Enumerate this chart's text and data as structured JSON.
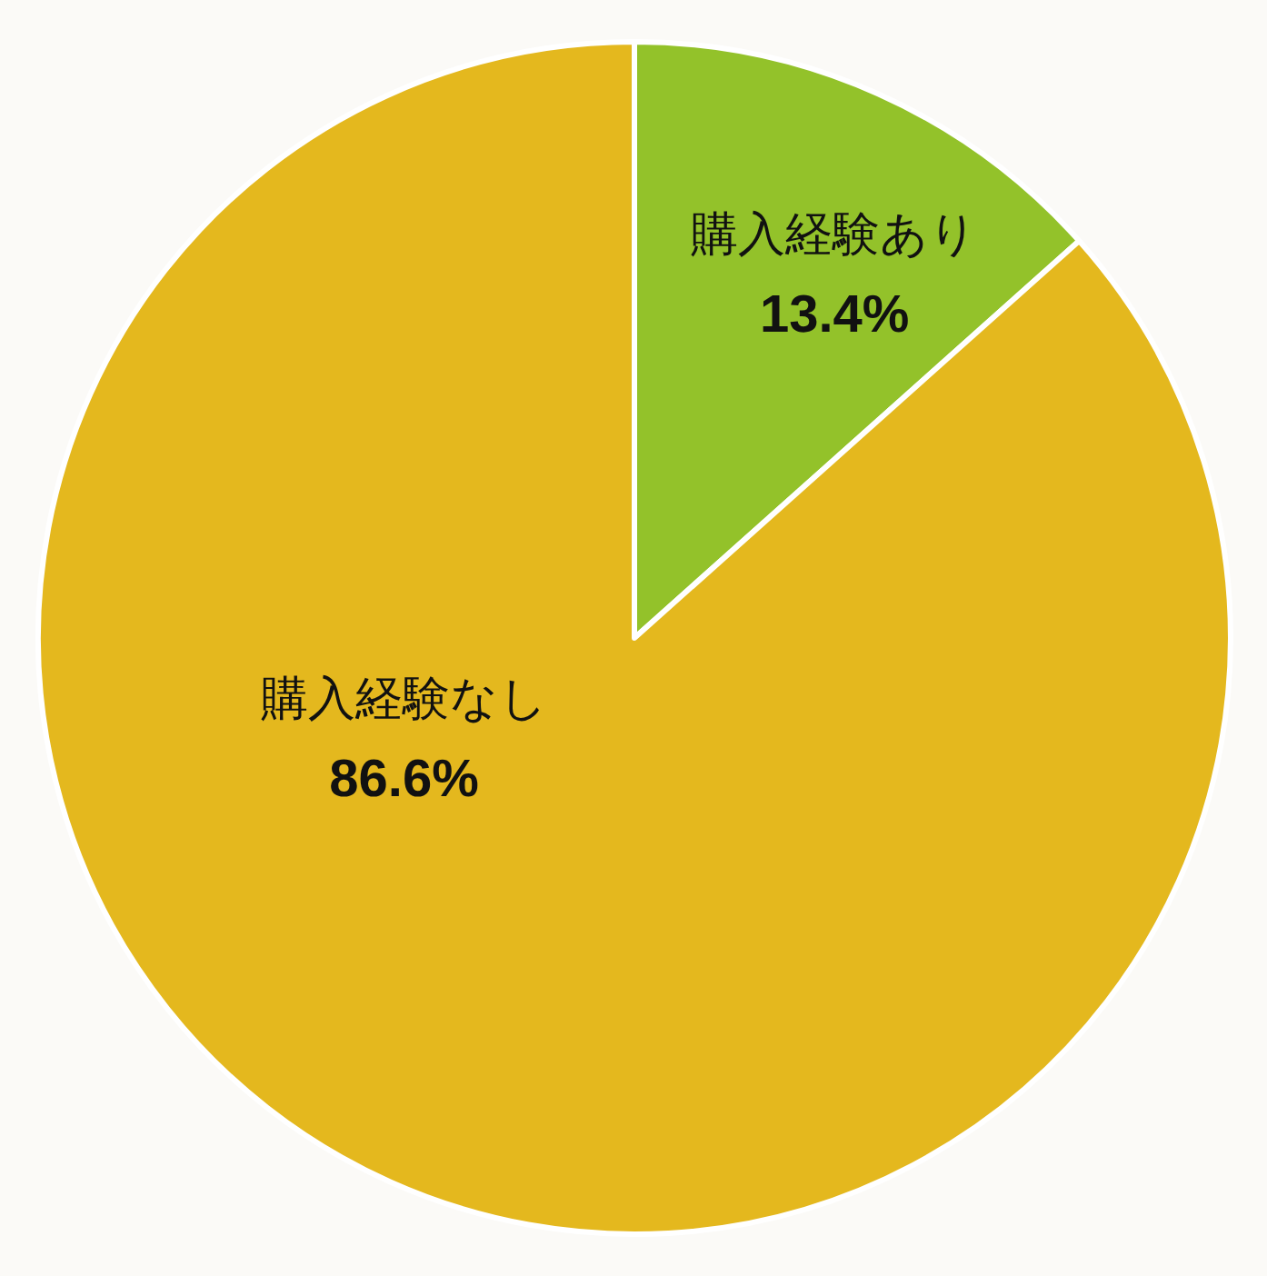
{
  "chart_data": {
    "type": "pie",
    "categories": [
      "購入経験あり",
      "購入経験なし"
    ],
    "values": [
      13.4,
      86.6
    ],
    "colors": [
      "#93c22a",
      "#e4b81e"
    ],
    "value_labels": [
      "13.4%",
      "86.6%"
    ]
  }
}
